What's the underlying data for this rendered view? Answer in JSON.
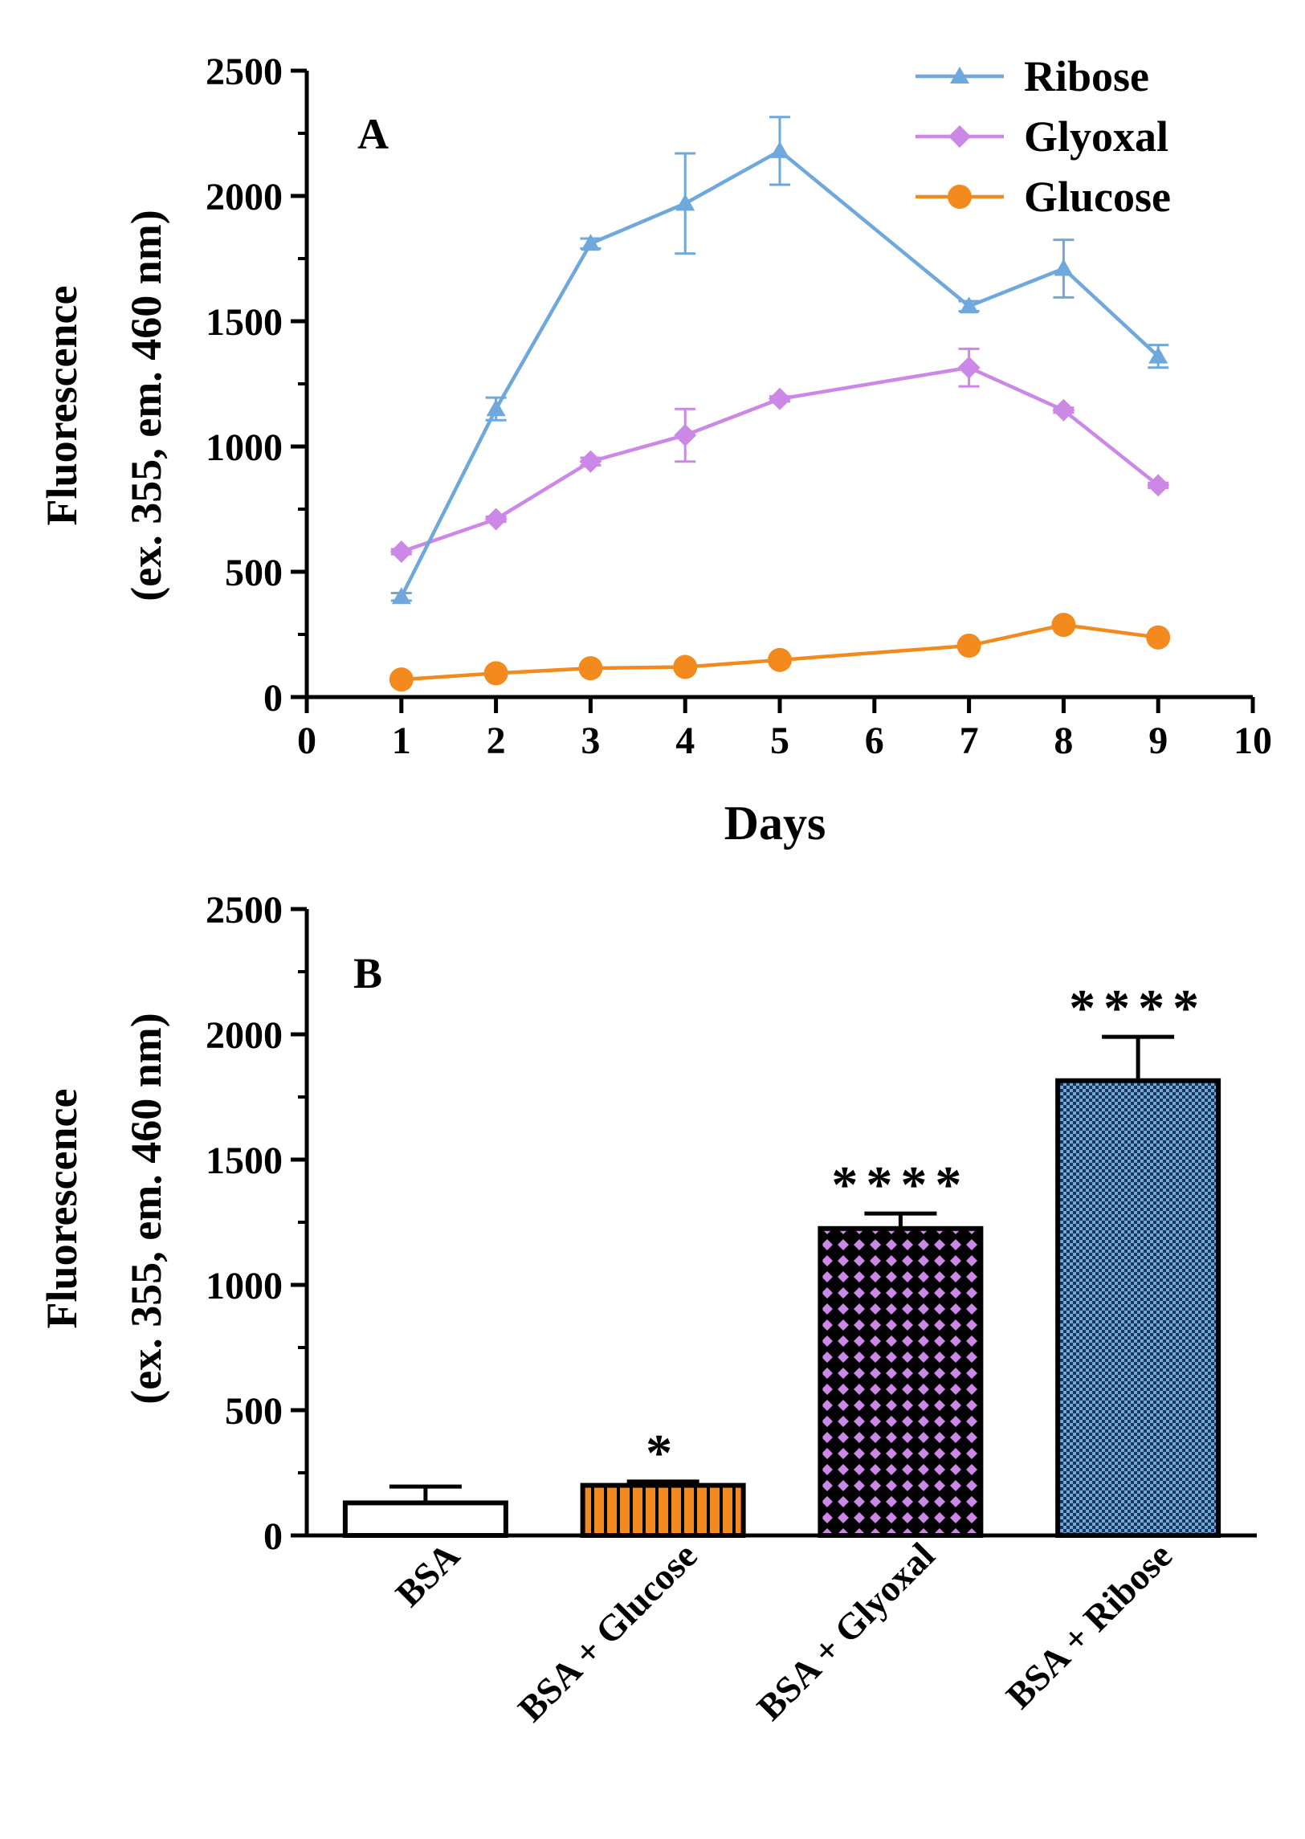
{
  "chart_data": [
    {
      "type": "line",
      "panel_label": "A",
      "xlabel": "Days",
      "ylabel_line1": "Fluorescence",
      "ylabel_line2": "(ex. 355, em. 460 nm)",
      "xlim": [
        0,
        10
      ],
      "ylim": [
        0,
        2500
      ],
      "x_ticks": [
        "0",
        "1",
        "2",
        "3",
        "4",
        "5",
        "6",
        "7",
        "8",
        "9",
        "10"
      ],
      "y_ticks": [
        "0",
        "500",
        "1000",
        "1500",
        "2000",
        "2500"
      ],
      "legend_position": "top-right",
      "grid": false,
      "series": [
        {
          "name": "Ribose",
          "color": "#6fa8dc",
          "marker": "triangle",
          "x": [
            1,
            2,
            3,
            4,
            5,
            7,
            8,
            9
          ],
          "y": [
            400,
            1150,
            1810,
            1970,
            2180,
            1560,
            1710,
            1360
          ],
          "err": [
            15,
            45,
            20,
            200,
            135,
            20,
            115,
            45
          ]
        },
        {
          "name": "Glyoxal",
          "color": "#cc88e6",
          "marker": "diamond",
          "x": [
            1,
            2,
            3,
            4,
            5,
            7,
            8,
            9
          ],
          "y": [
            580,
            710,
            940,
            1045,
            1190,
            1315,
            1145,
            845
          ],
          "err": [
            10,
            10,
            15,
            105,
            10,
            75,
            10,
            10
          ]
        },
        {
          "name": "Glucose",
          "color": "#f28a1e",
          "marker": "circle",
          "x": [
            1,
            2,
            3,
            4,
            5,
            7,
            8,
            9
          ],
          "y": [
            70,
            95,
            115,
            120,
            148,
            205,
            288,
            238
          ],
          "err": [
            5,
            5,
            5,
            5,
            5,
            5,
            5,
            5
          ]
        }
      ]
    },
    {
      "type": "bar",
      "panel_label": "B",
      "ylabel_line1": "Fluorescence",
      "ylabel_line2": "(ex. 355, em. 460 nm)",
      "ylim": [
        0,
        2500
      ],
      "y_ticks": [
        "0",
        "500",
        "1000",
        "1500",
        "2000",
        "2500"
      ],
      "categories": [
        "BSA",
        "BSA + Glucose",
        "BSA + Glyoxal",
        "BSA + Ribose"
      ],
      "values": [
        130,
        200,
        1225,
        1815
      ],
      "errors": [
        65,
        15,
        60,
        175
      ],
      "significance": [
        "",
        "*",
        "****",
        "****"
      ],
      "colors": [
        "#ffffff",
        "#f28a1e",
        "#cc88e6",
        "#6fa8dc"
      ],
      "patterns": [
        "none",
        "vertical-stripes",
        "diamond-lattice",
        "fine-check"
      ]
    }
  ]
}
